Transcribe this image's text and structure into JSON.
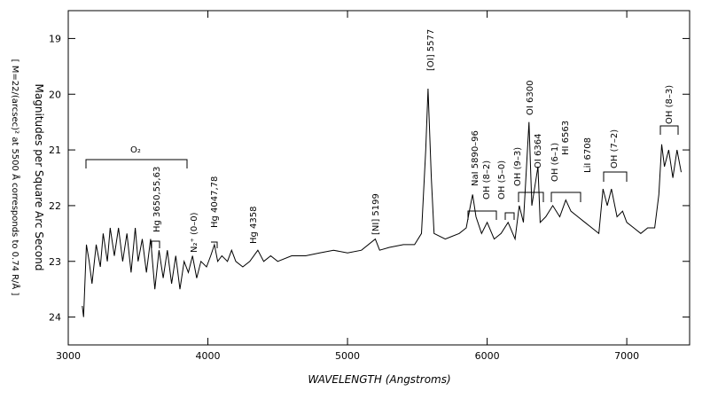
{
  "chart_data": {
    "type": "line",
    "x_label": "WAVELENGTH (Angstroms)",
    "y_label": "Magnitudes per Square Arc Second",
    "y_label_note": "[ M=22/(arcsec)² at 5500 Å corresponds to 0.74 R/Å ]",
    "xlim": [
      3000,
      7450
    ],
    "ylim": [
      24.5,
      18.5
    ],
    "xticks": [
      3000,
      4000,
      5000,
      6000,
      7000
    ],
    "yticks": [
      19,
      20,
      21,
      22,
      23,
      24
    ],
    "color": "#000000",
    "annotations": [
      "O₂",
      "Hg 3650,55,63",
      "N₂⁺ (0–0)",
      "Hg 4047,78",
      "Hg 4358",
      "[NI] 5199",
      "[OI] 5577",
      "NaI 5890–96",
      "OH (8–2)",
      "OH (5–0)",
      "OH (9–3)",
      "OI 6300",
      "OI 6364",
      "OH (6–1)",
      "HI 6563",
      "LiI 6708",
      "OH (7–2)",
      "OH (8–3)"
    ],
    "x": [
      3100,
      3110,
      3130,
      3150,
      3170,
      3200,
      3230,
      3250,
      3280,
      3300,
      3330,
      3360,
      3390,
      3420,
      3450,
      3480,
      3500,
      3530,
      3560,
      3590,
      3620,
      3650,
      3680,
      3710,
      3740,
      3770,
      3800,
      3830,
      3860,
      3890,
      3920,
      3950,
      3990,
      4020,
      4047,
      4070,
      4100,
      4140,
      4170,
      4200,
      4250,
      4300,
      4358,
      4400,
      4450,
      4500,
      4600,
      4700,
      4800,
      4900,
      5000,
      5100,
      5199,
      5230,
      5300,
      5400,
      5480,
      5530,
      5560,
      5577,
      5600,
      5620,
      5700,
      5800,
      5850,
      5880,
      5896,
      5920,
      5960,
      6000,
      6050,
      6100,
      6150,
      6200,
      6230,
      6260,
      6300,
      6320,
      6364,
      6380,
      6420,
      6470,
      6520,
      6563,
      6600,
      6650,
      6700,
      6750,
      6800,
      6830,
      6860,
      6890,
      6930,
      6970,
      7000,
      7050,
      7100,
      7150,
      7200,
      7230,
      7250,
      7270,
      7300,
      7330,
      7360,
      7390
    ],
    "values": [
      23.8,
      24.0,
      22.7,
      23.0,
      23.4,
      22.7,
      23.1,
      22.5,
      23.0,
      22.4,
      22.9,
      22.4,
      23.0,
      22.5,
      23.2,
      22.4,
      23.0,
      22.6,
      23.2,
      22.6,
      23.5,
      22.8,
      23.3,
      22.8,
      23.4,
      22.9,
      23.5,
      23.0,
      23.2,
      22.9,
      23.3,
      23.0,
      23.1,
      22.9,
      22.7,
      23.0,
      22.9,
      23.0,
      22.8,
      23.0,
      23.1,
      23.0,
      22.8,
      23.0,
      22.9,
      23.0,
      22.9,
      22.9,
      22.85,
      22.8,
      22.85,
      22.8,
      22.6,
      22.8,
      22.75,
      22.7,
      22.7,
      22.5,
      21.0,
      19.9,
      21.5,
      22.5,
      22.6,
      22.5,
      22.4,
      22.0,
      21.8,
      22.2,
      22.5,
      22.3,
      22.6,
      22.5,
      22.3,
      22.6,
      22.0,
      22.3,
      20.5,
      22.0,
      21.3,
      22.3,
      22.2,
      22.0,
      22.2,
      21.9,
      22.1,
      22.2,
      22.3,
      22.4,
      22.5,
      21.7,
      22.0,
      21.7,
      22.2,
      22.1,
      22.3,
      22.4,
      22.5,
      22.4,
      22.4,
      21.8,
      20.9,
      21.3,
      21.0,
      21.5,
      21.0,
      21.4
    ]
  }
}
